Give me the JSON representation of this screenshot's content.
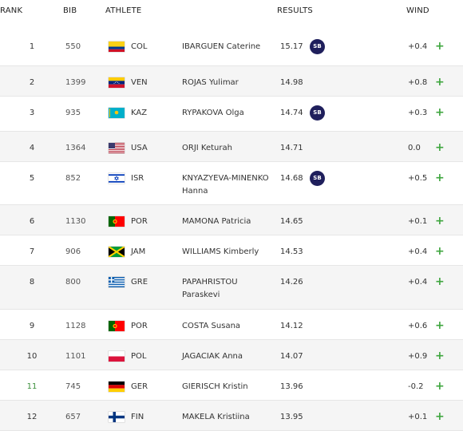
{
  "headers": {
    "rank": "RANK",
    "bib": "BIB",
    "athlete": "ATHLETE",
    "results": "RESULTS",
    "wind": "WIND"
  },
  "expand_symbol": "+",
  "rows": [
    {
      "rank": "1",
      "bib": "550",
      "country": "COL",
      "flag": "col",
      "name": "IBARGUEN Caterine",
      "result": "15.17",
      "badge": "SB",
      "wind": "+0.4",
      "h": 44
    },
    {
      "rank": "2",
      "bib": "1399",
      "country": "VEN",
      "flag": "ven",
      "name": "ROJAS Yulimar",
      "result": "14.98",
      "badge": "",
      "wind": "+0.8",
      "h": 37
    },
    {
      "rank": "3",
      "bib": "935",
      "country": "KAZ",
      "flag": "kaz",
      "name": "RYPAKOVA Olga",
      "result": "14.74",
      "badge": "SB",
      "wind": "+0.3",
      "h": 43
    },
    {
      "rank": "4",
      "bib": "1364",
      "country": "USA",
      "flag": "usa",
      "name": "ORJI Keturah",
      "result": "14.71",
      "badge": "",
      "wind": "0.0",
      "h": 37
    },
    {
      "rank": "5",
      "bib": "852",
      "country": "ISR",
      "flag": "isr",
      "name": "KNYAZYEVA-MINENKO Hanna",
      "result": "14.68",
      "badge": "SB",
      "wind": "+0.5",
      "h": 53
    },
    {
      "rank": "6",
      "bib": "1130",
      "country": "POR",
      "flag": "por",
      "name": "MAMONA Patricia",
      "result": "14.65",
      "badge": "",
      "wind": "+0.1",
      "h": 37
    },
    {
      "rank": "7",
      "bib": "906",
      "country": "JAM",
      "flag": "jam",
      "name": "WILLIAMS Kimberly",
      "result": "14.53",
      "badge": "",
      "wind": "+0.4",
      "h": 37
    },
    {
      "rank": "8",
      "bib": "800",
      "country": "GRE",
      "flag": "gre",
      "name": "PAPAHRISTOU Paraskevi",
      "result": "14.26",
      "badge": "",
      "wind": "+0.4",
      "h": 54
    },
    {
      "rank": "9",
      "bib": "1128",
      "country": "POR",
      "flag": "por",
      "name": "COSTA Susana",
      "result": "14.12",
      "badge": "",
      "wind": "+0.6",
      "h": 37
    },
    {
      "rank": "10",
      "bib": "1101",
      "country": "POL",
      "flag": "pol",
      "name": "JAGACIAK Anna",
      "result": "14.07",
      "badge": "",
      "wind": "+0.9",
      "h": 37
    },
    {
      "rank": "11",
      "bib": "745",
      "country": "GER",
      "flag": "ger",
      "name": "GIERISCH Kristin",
      "result": "13.96",
      "badge": "",
      "wind": "-0.2",
      "h": 37
    },
    {
      "rank": "12",
      "bib": "657",
      "country": "FIN",
      "flag": "fin",
      "name": "MAKELA Kristiina",
      "result": "13.95",
      "badge": "",
      "wind": "+0.1",
      "h": 37
    }
  ]
}
